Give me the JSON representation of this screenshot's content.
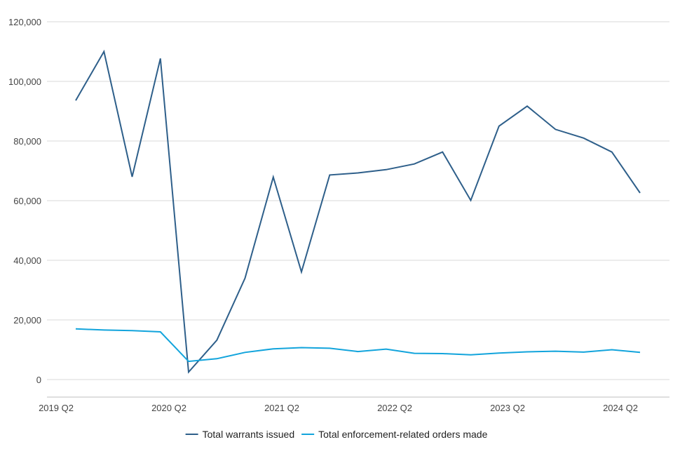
{
  "chart_data": {
    "type": "line",
    "title": "",
    "xlabel": "",
    "ylabel": "",
    "categories": [
      "2019 Q2",
      "2019 Q3",
      "2019 Q4",
      "2020 Q1",
      "2020 Q2",
      "2020 Q3",
      "2020 Q4",
      "2021 Q1",
      "2021 Q2",
      "2021 Q3",
      "2021 Q4",
      "2022 Q1",
      "2022 Q2",
      "2022 Q3",
      "2022 Q4",
      "2023 Q1",
      "2023 Q2",
      "2023 Q3",
      "2023 Q4",
      "2024 Q1",
      "2024 Q2"
    ],
    "x_tick_labels": [
      "2019 Q2",
      "2020 Q2",
      "2021 Q2",
      "2022 Q2",
      "2023 Q2",
      "2024 Q2"
    ],
    "ylim": [
      0,
      120000
    ],
    "y_ticks": [
      0,
      20000,
      40000,
      60000,
      80000,
      100000,
      120000
    ],
    "y_tick_labels": [
      "0",
      "20,000",
      "40,000",
      "60,000",
      "80,000",
      "100,000",
      "120,000"
    ],
    "grid": "horizontal",
    "legend_position": "bottom",
    "series": [
      {
        "name": "Total warrants issued",
        "color": "#2e5f8a",
        "values": [
          93600,
          110000,
          68000,
          107700,
          2500,
          13200,
          34000,
          67900,
          36100,
          68600,
          69300,
          70400,
          72300,
          76300,
          60100,
          85000,
          91700,
          83900,
          81000,
          76300,
          62600
        ]
      },
      {
        "name": "Total enforcement-related orders made",
        "color": "#12a4dc",
        "values": [
          17000,
          16600,
          16400,
          16000,
          6100,
          7000,
          9100,
          10300,
          10700,
          10500,
          9400,
          10200,
          8800,
          8700,
          8300,
          8900,
          9300,
          9500,
          9200,
          10000,
          9100
        ]
      }
    ]
  }
}
